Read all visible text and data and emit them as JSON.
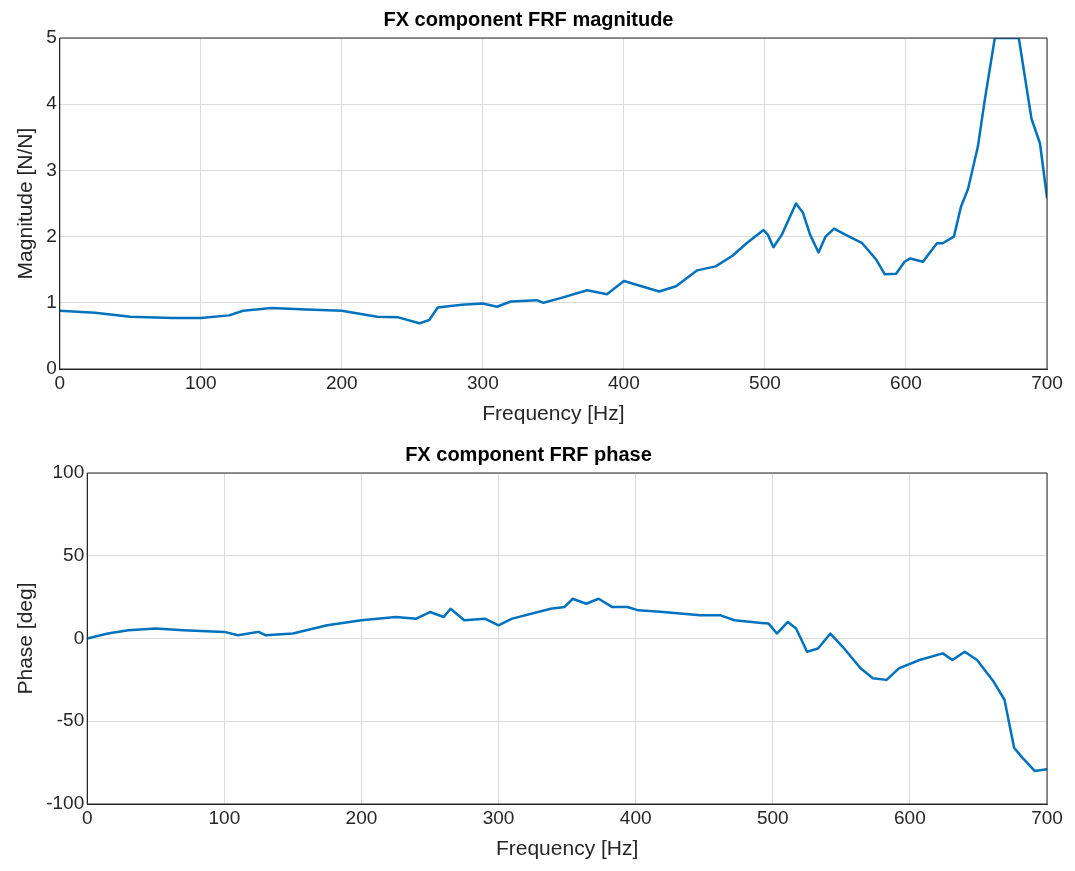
{
  "chart_data": [
    {
      "type": "line",
      "title": "FX component FRF magnitude",
      "xlabel": "Frequency [Hz]",
      "ylabel": "Magnitude [N/N]",
      "series": [
        {
          "color": "#0072bd",
          "x": [
            0,
            25,
            50,
            80,
            100,
            120,
            130,
            150,
            175,
            200,
            225,
            240,
            255,
            262,
            268,
            285,
            300,
            310,
            320,
            338,
            343,
            355,
            374,
            388,
            400,
            425,
            437,
            452,
            465,
            477,
            487,
            499,
            502,
            506,
            512,
            522,
            527,
            532,
            538,
            543,
            549,
            557,
            569,
            579,
            585,
            593,
            599,
            603,
            612,
            622,
            626,
            634,
            639,
            644,
            651,
            656,
            663,
            680,
            689,
            695,
            700
          ],
          "values": [
            0.88,
            0.85,
            0.79,
            0.77,
            0.77,
            0.81,
            0.88,
            0.92,
            0.9,
            0.88,
            0.79,
            0.78,
            0.69,
            0.74,
            0.93,
            0.97,
            0.99,
            0.94,
            1.02,
            1.04,
            1.0,
            1.07,
            1.19,
            1.13,
            1.33,
            1.17,
            1.25,
            1.49,
            1.55,
            1.71,
            1.9,
            2.1,
            2.03,
            1.84,
            2.03,
            2.5,
            2.36,
            2.03,
            1.76,
            2.0,
            2.12,
            2.03,
            1.9,
            1.65,
            1.43,
            1.44,
            1.62,
            1.67,
            1.62,
            1.9,
            1.9,
            2.0,
            2.45,
            2.72,
            3.36,
            4.08,
            5.0,
            5.0,
            3.78,
            3.41,
            2.59
          ]
        }
      ],
      "xlim": [
        0,
        700
      ],
      "xticks": [
        0,
        100,
        200,
        300,
        400,
        500,
        600,
        700
      ],
      "ylim": [
        0,
        5
      ],
      "yticks": [
        0,
        1,
        2,
        3,
        4,
        5
      ],
      "grid": true,
      "line_style": "solid",
      "marker": "none"
    },
    {
      "type": "line",
      "title": "FX component FRF phase",
      "xlabel": "Frequency [Hz]",
      "ylabel": "Phase [deg]",
      "series": [
        {
          "color": "#0072bd",
          "x": [
            0,
            15,
            30,
            50,
            70,
            100,
            110,
            125,
            130,
            150,
            175,
            200,
            225,
            240,
            250,
            260,
            265,
            275,
            290,
            300,
            310,
            338,
            348,
            354,
            364,
            373,
            383,
            394,
            402,
            420,
            447,
            462,
            472,
            497,
            503,
            511,
            517,
            525,
            533,
            542,
            551,
            564,
            573,
            583,
            592,
            607,
            624,
            631,
            640,
            649,
            661,
            669,
            676,
            682,
            691,
            700
          ],
          "values": [
            0,
            3,
            5,
            6,
            5,
            4,
            2,
            4,
            2,
            3,
            8,
            11,
            13,
            12,
            16,
            13,
            18,
            11,
            12,
            8,
            12,
            18,
            19,
            24,
            21,
            24,
            19,
            19,
            17,
            16,
            14,
            14,
            11,
            9,
            3,
            10,
            6,
            -8,
            -6,
            3,
            -5,
            -18,
            -24,
            -25,
            -18,
            -13,
            -9,
            -13,
            -8,
            -13,
            -26,
            -37,
            -66,
            -72,
            -80,
            -79
          ]
        }
      ],
      "xlim": [
        0,
        700
      ],
      "xticks": [
        0,
        100,
        200,
        300,
        400,
        500,
        600,
        700
      ],
      "ylim": [
        -100,
        100
      ],
      "yticks": [
        -100,
        -50,
        0,
        50,
        100
      ],
      "grid": true,
      "line_style": "solid",
      "marker": "none"
    }
  ]
}
